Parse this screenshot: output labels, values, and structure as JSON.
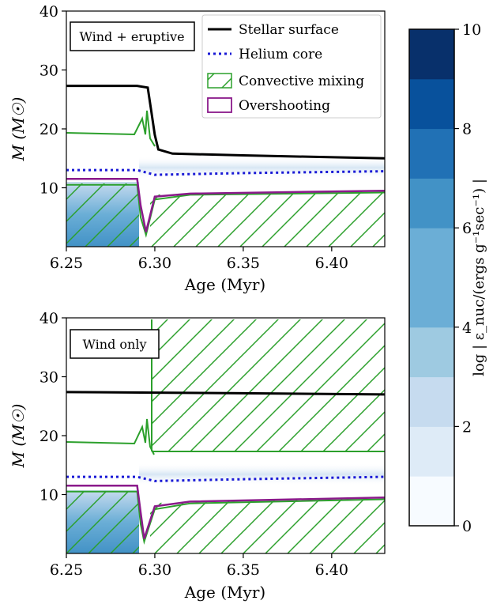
{
  "colors": {
    "surface": "#000000",
    "helium": "#1a1ad6",
    "convective": "#2ca02c",
    "overshoot": "#8b1a8b",
    "cmap": [
      "#f7fbff",
      "#deebf7",
      "#c6dbef",
      "#9ecae1",
      "#6baed6",
      "#4292c6",
      "#2171b5",
      "#08519c",
      "#08306b"
    ]
  },
  "legend": {
    "surface": "Stellar surface",
    "helium": "Helium core",
    "convective": "Convective mixing",
    "overshoot": "Overshooting"
  },
  "colorbar": {
    "label": "log | ε_nuc/(ergs g⁻¹sec⁻¹) |",
    "ticks": [
      "0",
      "2",
      "4",
      "6",
      "8",
      "10"
    ],
    "range": [
      0,
      10
    ]
  },
  "chart_data": [
    {
      "type": "line",
      "panel_label": "Wind + eruptive",
      "xlabel": "Age (Myr)",
      "ylabel": "M (M☉)",
      "xlim": [
        6.25,
        6.43
      ],
      "ylim": [
        0,
        40
      ],
      "xticks": [
        "6.25",
        "6.30",
        "6.35",
        "6.40"
      ],
      "yticks": [
        "10",
        "20",
        "30",
        "40"
      ],
      "series": [
        {
          "name": "Stellar surface",
          "x": [
            6.25,
            6.29,
            6.296,
            6.298,
            6.3,
            6.302,
            6.31,
            6.35,
            6.43
          ],
          "y": [
            27.3,
            27.3,
            27.0,
            23.0,
            19.0,
            16.5,
            15.8,
            15.5,
            15.0
          ]
        },
        {
          "name": "Helium core",
          "x": [
            6.25,
            6.29,
            6.3,
            6.35,
            6.43
          ],
          "y": [
            13.0,
            13.0,
            12.2,
            12.5,
            12.8
          ]
        },
        {
          "name": "Convective mixing",
          "x": [
            6.25,
            6.29,
            6.292,
            6.295,
            6.3,
            6.32,
            6.43
          ],
          "y": [
            10.5,
            10.5,
            5.0,
            2.0,
            8.0,
            8.8,
            9.2
          ]
        },
        {
          "name": "Overshooting",
          "x": [
            6.25,
            6.29,
            6.292,
            6.295,
            6.3,
            6.32,
            6.43
          ],
          "y": [
            11.5,
            11.5,
            7.0,
            2.5,
            8.5,
            9.0,
            9.5
          ]
        }
      ]
    },
    {
      "type": "line",
      "panel_label": "Wind only",
      "xlabel": "Age (Myr)",
      "ylabel": "M (M☉)",
      "xlim": [
        6.25,
        6.43
      ],
      "ylim": [
        0,
        40
      ],
      "xticks": [
        "6.25",
        "6.30",
        "6.35",
        "6.40"
      ],
      "yticks": [
        "10",
        "20",
        "30",
        "40"
      ],
      "series": [
        {
          "name": "Stellar surface",
          "x": [
            6.25,
            6.3,
            6.35,
            6.43
          ],
          "y": [
            27.4,
            27.3,
            27.2,
            27.0
          ]
        },
        {
          "name": "Helium core",
          "x": [
            6.25,
            6.29,
            6.3,
            6.35,
            6.43
          ],
          "y": [
            13.0,
            13.0,
            12.3,
            12.6,
            13.0
          ]
        },
        {
          "name": "Convective mixing",
          "x": [
            6.25,
            6.29,
            6.292,
            6.294,
            6.3,
            6.32,
            6.43
          ],
          "y": [
            10.5,
            10.5,
            5.0,
            2.0,
            7.5,
            8.5,
            9.2
          ]
        },
        {
          "name": "Overshooting",
          "x": [
            6.25,
            6.29,
            6.292,
            6.294,
            6.3,
            6.32,
            6.43
          ],
          "y": [
            11.5,
            11.5,
            7.0,
            2.5,
            8.0,
            8.8,
            9.5
          ]
        }
      ]
    }
  ]
}
